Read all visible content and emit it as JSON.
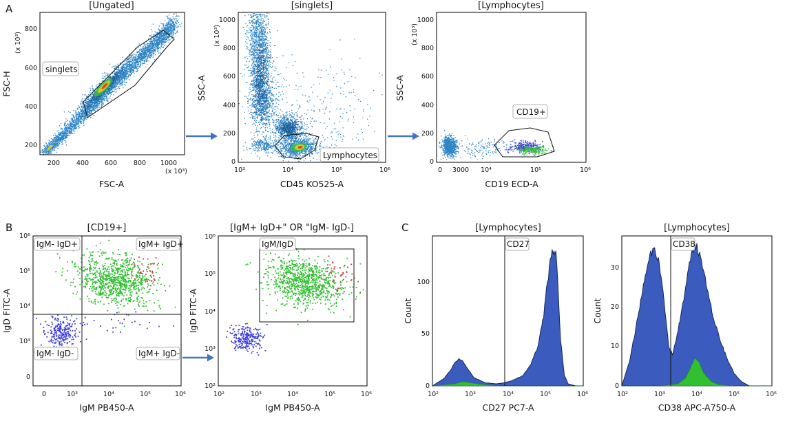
{
  "panel_letters": [
    "A",
    "B",
    "C"
  ],
  "colors": {
    "dots": "#2f86c6",
    "dots_dark": "#1f5f99",
    "density_mid": "#3fbf3f",
    "density_hot": "#e8d020",
    "density_core": "#d63a2a",
    "blue": "#3a3ae0",
    "green": "#30c030",
    "red": "#d03030",
    "hist_fill": "#3b5bbf",
    "hist_edge": "#0d1f4d",
    "arrow": "#4472c4"
  },
  "chart_data": [
    {
      "id": "ungated",
      "type": "scatter",
      "title": "[Ungated]",
      "xlabel": "FSC-A",
      "ylabel": "FSC-H",
      "x_unit": "(x 10³)",
      "y_unit": "(x 10³)",
      "xticks": [
        "200",
        "400",
        "600",
        "800",
        "1000"
      ],
      "yticks": [
        "200",
        "400",
        "600",
        "800"
      ],
      "xlim": [
        120,
        1100
      ],
      "ylim": [
        150,
        880
      ],
      "gates": [
        {
          "name": "singlets",
          "label": "singlets"
        }
      ]
    },
    {
      "id": "singlets",
      "type": "scatter",
      "title": "[singlets]",
      "xlabel": "CD45 KO525-A",
      "ylabel": "SSC-A",
      "y_unit": "(x 10³)",
      "xticks": [
        "10³",
        "10⁴",
        "10⁵",
        "10⁶"
      ],
      "yticks": [
        "0",
        "200",
        "400",
        "600",
        "800",
        "1000"
      ],
      "xscale": "log",
      "xlim": [
        1000,
        1000000
      ],
      "ylim": [
        0,
        1050
      ],
      "gates": [
        {
          "name": "lymphocytes",
          "label": "Lymphocytes"
        }
      ]
    },
    {
      "id": "lymphocytes",
      "type": "scatter",
      "title": "[Lymphocytes]",
      "xlabel": "CD19 ECD-A",
      "ylabel": "SSC-A",
      "y_unit": "(x 10³)",
      "xticks": [
        "0",
        "3000",
        "10⁴",
        "10⁵",
        "10⁶"
      ],
      "yticks": [
        "0",
        "200",
        "400",
        "600",
        "800",
        "1000"
      ],
      "xscale": "biexponential",
      "ylim": [
        0,
        1050
      ],
      "gates": [
        {
          "name": "cd19",
          "label": "CD19+"
        }
      ]
    },
    {
      "id": "cd19_quadrant",
      "type": "scatter",
      "title": "[CD19+]",
      "xlabel": "IgM PB450-A",
      "ylabel": "IgD FITC-A",
      "xticks": [
        "0",
        "10³",
        "10⁴",
        "10⁵",
        "10⁶"
      ],
      "yticks": [
        "0",
        "10³",
        "10⁴",
        "10⁵",
        "10⁶"
      ],
      "xscale": "biexponential",
      "yscale": "biexponential",
      "quadrants": [
        "IgM- IgD+",
        "IgM+ IgD+",
        "IgM- IgD-",
        "IgM+ IgD-"
      ]
    },
    {
      "id": "igm_igd",
      "type": "scatter",
      "title": "[IgM+ IgD+\" OR \"IgM- IgD-]",
      "xlabel": "IgM PB450-A",
      "ylabel": "IgD FITC-A",
      "xticks": [
        "10²",
        "10³",
        "10⁴",
        "10⁵",
        "10⁶"
      ],
      "yticks": [
        "10²",
        "10³",
        "10⁴",
        "10⁵",
        "10⁶"
      ],
      "xscale": "log",
      "yscale": "log",
      "xlim": [
        100,
        1000000
      ],
      "ylim": [
        100,
        1000000
      ],
      "gates": [
        {
          "name": "igm-igd",
          "label": "IgM/IgD"
        }
      ]
    },
    {
      "id": "cd27_hist",
      "type": "area",
      "title": "[Lymphocytes]",
      "xlabel": "CD27 PC7-A",
      "ylabel": "Count",
      "xticks": [
        "10²",
        "10³",
        "10⁴",
        "10⁵",
        "10⁶"
      ],
      "yticks": [
        "0",
        "50",
        "100"
      ],
      "xscale": "log",
      "xlim": [
        100,
        1000000
      ],
      "ylim": [
        0,
        145
      ],
      "marker": {
        "label": "CD27",
        "x": 8000
      },
      "series": [
        {
          "x": [
            2.0,
            2.3,
            2.5,
            2.6,
            2.7,
            2.8,
            2.9,
            3.1,
            3.4,
            3.7,
            3.9,
            4.1,
            4.4,
            4.6,
            4.8,
            4.95,
            5.05,
            5.15,
            5.22,
            5.28,
            5.33,
            5.4,
            5.5,
            5.6,
            5.8,
            6.0
          ],
          "y": [
            0,
            7,
            16,
            23,
            26,
            24,
            18,
            8,
            3,
            2,
            3,
            5,
            10,
            20,
            38,
            68,
            100,
            126,
            135,
            126,
            95,
            45,
            10,
            2,
            0,
            0
          ]
        },
        {
          "x": [
            2.0,
            2.6,
            2.8,
            3.0,
            3.4,
            3.8,
            4.2,
            4.6,
            4.9,
            5.1,
            5.3,
            5.6,
            6.0
          ],
          "y": [
            0,
            2,
            4,
            3,
            1,
            0,
            0,
            0,
            0,
            0,
            0,
            0,
            0
          ]
        }
      ]
    },
    {
      "id": "cd38_hist",
      "type": "area",
      "title": "[Lymphocytes]",
      "xlabel": "CD38 APC-A750-A",
      "ylabel": "Count",
      "xticks": [
        "10²",
        "10³",
        "10⁴",
        "10⁵",
        "10⁶"
      ],
      "yticks": [
        "0",
        "10",
        "20",
        "30"
      ],
      "xscale": "log",
      "xlim": [
        100,
        1000000
      ],
      "ylim": [
        0,
        38
      ],
      "marker": {
        "label": "CD38",
        "x": 2000
      },
      "series": [
        {
          "x": [
            2.0,
            2.2,
            2.4,
            2.6,
            2.75,
            2.85,
            2.95,
            3.1,
            3.25,
            3.35,
            3.5,
            3.7,
            3.85,
            3.95,
            4.05,
            4.2,
            4.4,
            4.6,
            4.8,
            5.0,
            5.2,
            5.4,
            5.55,
            6.0
          ],
          "y": [
            0,
            6,
            16,
            27,
            33,
            35,
            33,
            24,
            10,
            8,
            14,
            25,
            33,
            36,
            34,
            28,
            19,
            12,
            7,
            3,
            1,
            0,
            0,
            0
          ]
        },
        {
          "x": [
            2.0,
            3.0,
            3.5,
            3.7,
            3.85,
            3.95,
            4.05,
            4.2,
            4.4,
            4.6,
            5.0,
            6.0
          ],
          "y": [
            0,
            0,
            0.5,
            2,
            5,
            7,
            6,
            3,
            1,
            0.3,
            0,
            0
          ]
        }
      ]
    }
  ]
}
